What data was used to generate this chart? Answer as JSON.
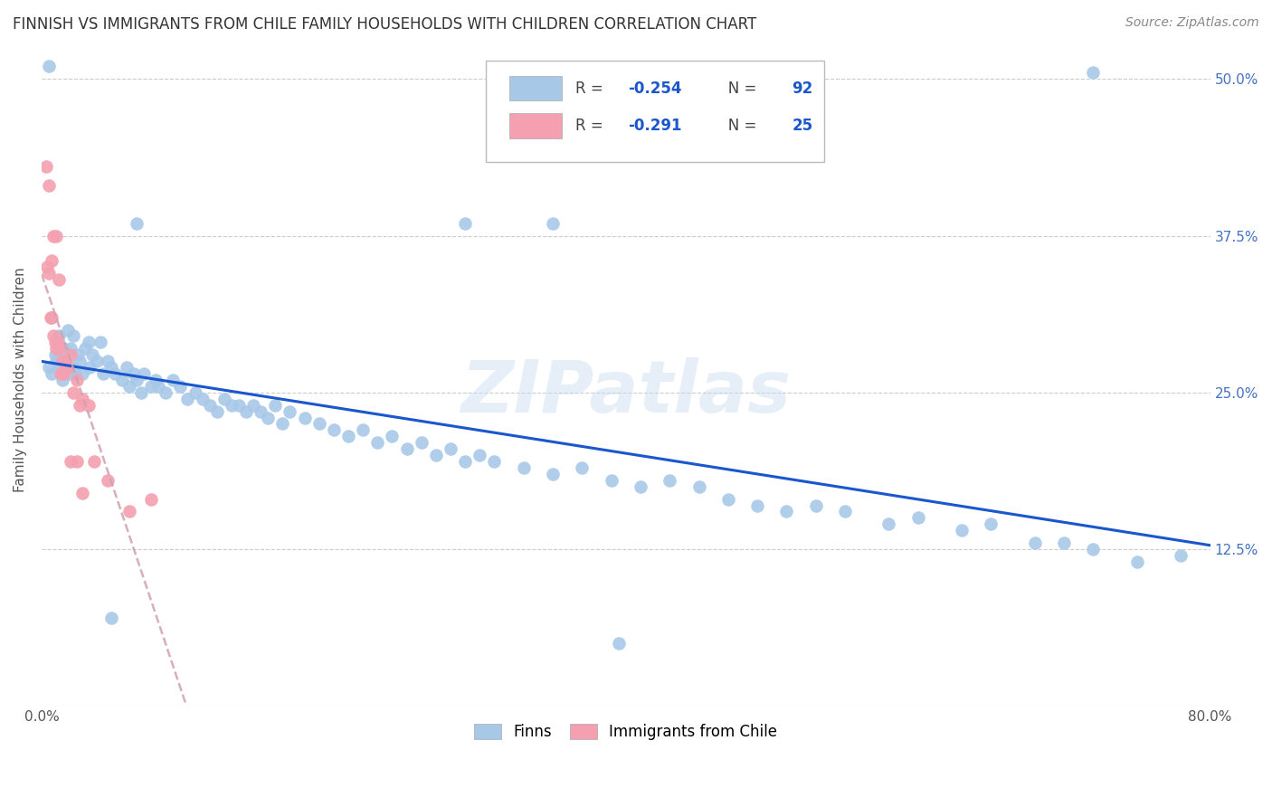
{
  "title": "FINNISH VS IMMIGRANTS FROM CHILE FAMILY HOUSEHOLDS WITH CHILDREN CORRELATION CHART",
  "source": "Source: ZipAtlas.com",
  "ylabel": "Family Households with Children",
  "finn_color": "#a8c8e8",
  "chile_color": "#f4a0b0",
  "finn_line_color": "#1a56cc",
  "chile_line_color": "#d0a0b0",
  "finn_R": -0.254,
  "finn_N": 92,
  "chile_R": -0.291,
  "chile_N": 25,
  "xlim": [
    0.0,
    0.8
  ],
  "ylim": [
    0.0,
    0.52
  ],
  "ytick_positions": [
    0.0,
    0.125,
    0.25,
    0.375,
    0.5
  ],
  "ytick_labels": [
    "",
    "12.5%",
    "25.0%",
    "37.5%",
    "50.0%"
  ],
  "watermark": "ZIPatlas",
  "finn_x": [
    0.005,
    0.007,
    0.009,
    0.01,
    0.011,
    0.012,
    0.013,
    0.014,
    0.015,
    0.016,
    0.018,
    0.019,
    0.02,
    0.021,
    0.022,
    0.023,
    0.025,
    0.026,
    0.028,
    0.03,
    0.032,
    0.033,
    0.035,
    0.038,
    0.04,
    0.042,
    0.045,
    0.048,
    0.05,
    0.055,
    0.058,
    0.06,
    0.063,
    0.065,
    0.068,
    0.07,
    0.075,
    0.078,
    0.08,
    0.085,
    0.09,
    0.095,
    0.1,
    0.105,
    0.11,
    0.115,
    0.12,
    0.125,
    0.13,
    0.135,
    0.14,
    0.145,
    0.15,
    0.155,
    0.16,
    0.165,
    0.17,
    0.18,
    0.19,
    0.2,
    0.21,
    0.22,
    0.23,
    0.24,
    0.25,
    0.26,
    0.27,
    0.28,
    0.29,
    0.3,
    0.31,
    0.33,
    0.35,
    0.37,
    0.39,
    0.41,
    0.43,
    0.45,
    0.47,
    0.49,
    0.51,
    0.53,
    0.55,
    0.58,
    0.6,
    0.63,
    0.65,
    0.68,
    0.7,
    0.72,
    0.75,
    0.78
  ],
  "finn_y": [
    0.27,
    0.265,
    0.28,
    0.275,
    0.29,
    0.295,
    0.27,
    0.26,
    0.285,
    0.275,
    0.3,
    0.265,
    0.285,
    0.27,
    0.295,
    0.265,
    0.28,
    0.275,
    0.265,
    0.285,
    0.29,
    0.27,
    0.28,
    0.275,
    0.29,
    0.265,
    0.275,
    0.27,
    0.265,
    0.26,
    0.27,
    0.255,
    0.265,
    0.26,
    0.25,
    0.265,
    0.255,
    0.26,
    0.255,
    0.25,
    0.26,
    0.255,
    0.245,
    0.25,
    0.245,
    0.24,
    0.235,
    0.245,
    0.24,
    0.24,
    0.235,
    0.24,
    0.235,
    0.23,
    0.24,
    0.225,
    0.235,
    0.23,
    0.225,
    0.22,
    0.215,
    0.22,
    0.21,
    0.215,
    0.205,
    0.21,
    0.2,
    0.205,
    0.195,
    0.2,
    0.195,
    0.19,
    0.185,
    0.19,
    0.18,
    0.175,
    0.18,
    0.175,
    0.165,
    0.16,
    0.155,
    0.16,
    0.155,
    0.145,
    0.15,
    0.14,
    0.145,
    0.13,
    0.13,
    0.125,
    0.115,
    0.12
  ],
  "finn_x_outliers": [
    0.72,
    0.29,
    0.35,
    0.065,
    0.048,
    0.005,
    0.395
  ],
  "finn_y_outliers": [
    0.505,
    0.385,
    0.385,
    0.385,
    0.07,
    0.51,
    0.05
  ],
  "chile_x": [
    0.003,
    0.004,
    0.005,
    0.006,
    0.007,
    0.008,
    0.009,
    0.01,
    0.011,
    0.012,
    0.013,
    0.014,
    0.015,
    0.016,
    0.018,
    0.02,
    0.022,
    0.024,
    0.026,
    0.028,
    0.032,
    0.036,
    0.045,
    0.06,
    0.075
  ],
  "chile_y": [
    0.43,
    0.35,
    0.345,
    0.31,
    0.31,
    0.295,
    0.29,
    0.285,
    0.29,
    0.285,
    0.265,
    0.275,
    0.265,
    0.275,
    0.27,
    0.28,
    0.25,
    0.26,
    0.24,
    0.245,
    0.24,
    0.195,
    0.18,
    0.155,
    0.165
  ],
  "chile_x_outliers": [
    0.005,
    0.007,
    0.008,
    0.01,
    0.012,
    0.02,
    0.024,
    0.028
  ],
  "chile_y_outliers": [
    0.415,
    0.355,
    0.375,
    0.375,
    0.34,
    0.195,
    0.195,
    0.17
  ]
}
